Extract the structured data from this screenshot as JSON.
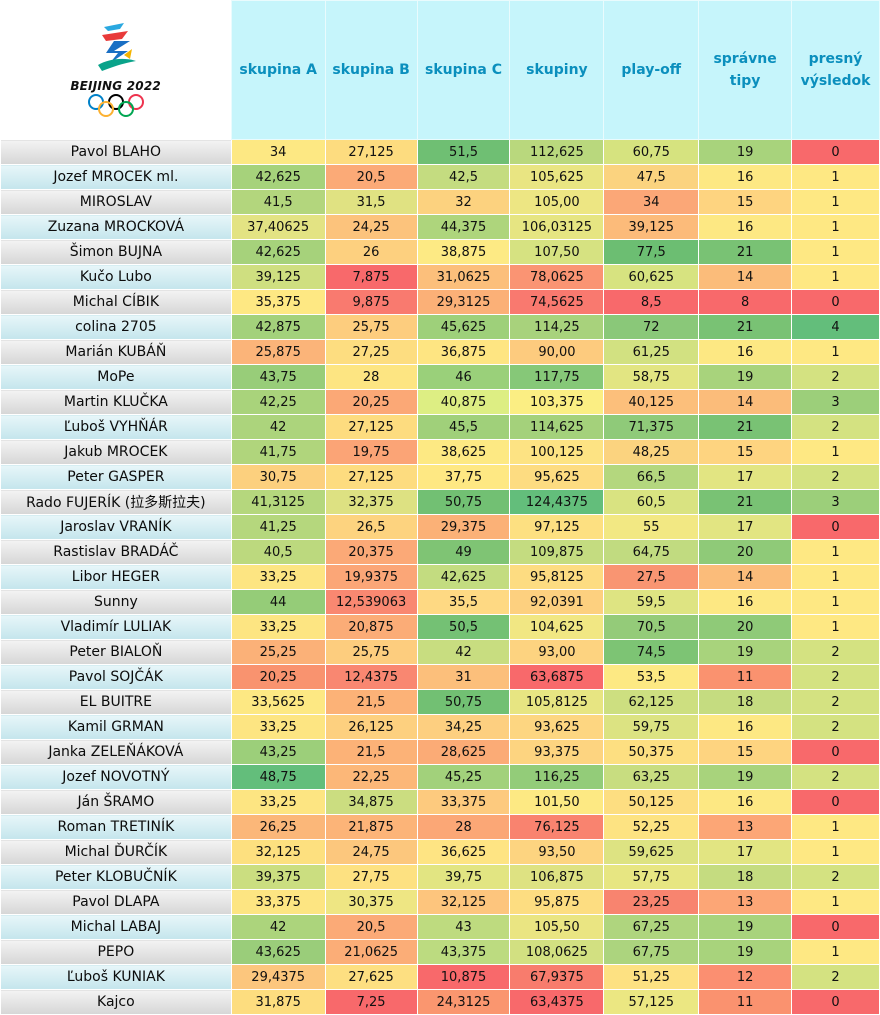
{
  "logo": {
    "text": "BEIJING 2022",
    "icon": "beijing-2022-olympic-emblem"
  },
  "colors": {
    "header_bg": "#c6f5fb",
    "header_text": "#0b8fbd"
  },
  "headers": [
    "skupina A",
    "skupina B",
    "skupina C",
    "skupiny",
    "play-off",
    "správne tipy",
    "presný výsledok"
  ],
  "rows": [
    {
      "name": "Pavol BLAHO",
      "values": [
        "34",
        "27,125",
        "51,5",
        "112,625",
        "60,75",
        "19",
        "0"
      ],
      "colors": [
        "#fde883",
        "#fddc7f",
        "#6fbf73",
        "#b9d87d",
        "#d6e37f",
        "#a8d37c",
        "#f8696b"
      ]
    },
    {
      "name": "Jozef MROCEK ml.",
      "values": [
        "42,625",
        "20,5",
        "42,5",
        "105,625",
        "47,5",
        "16",
        "1"
      ],
      "colors": [
        "#a6d27b",
        "#fbaa77",
        "#c4dc80",
        "#e9e582",
        "#fbd37f",
        "#fde883",
        "#fee883"
      ]
    },
    {
      "name": "MIROSLAV",
      "values": [
        "41,5",
        "31,5",
        "32",
        "105,00",
        "34",
        "15",
        "1"
      ],
      "colors": [
        "#b3d67d",
        "#e0e282",
        "#fcd27f",
        "#edE683",
        "#fba777",
        "#fed480",
        "#fee883"
      ]
    },
    {
      "name": "Zuzana MROCKOVÁ",
      "values": [
        "37,40625",
        "24,25",
        "44,375",
        "106,03125",
        "39,125",
        "16",
        "1"
      ],
      "colors": [
        "#e3e383",
        "#fcc37c",
        "#aed57c",
        "#e6e582",
        "#fcbb7a",
        "#fde883",
        "#fee883"
      ]
    },
    {
      "name": "Šimon BUJNA",
      "values": [
        "42,625",
        "26",
        "38,875",
        "107,50",
        "77,5",
        "21",
        "1"
      ],
      "colors": [
        "#a6d27b",
        "#fdd07f",
        "#fdea84",
        "#d6e281",
        "#6cbe72",
        "#79c274",
        "#fee883"
      ]
    },
    {
      "name": "Kučo Lubo",
      "values": [
        "39,125",
        "7,875",
        "31,0625",
        "78,0625",
        "60,625",
        "14",
        "1"
      ],
      "colors": [
        "#cfdf80",
        "#f8696b",
        "#fcbf7b",
        "#fa9473",
        "#d7e380",
        "#fbbc7a",
        "#fee883"
      ]
    },
    {
      "name": "Michal CÍBIK",
      "values": [
        "35,375",
        "9,875",
        "29,3125",
        "74,5625",
        "8,5",
        "8",
        "0"
      ],
      "colors": [
        "#fee883",
        "#f97a6f",
        "#fbb077",
        "#f9796f",
        "#f8696b",
        "#f8696b",
        "#f8696b"
      ]
    },
    {
      "name": "colina 2705",
      "values": [
        "42,875",
        "25,75",
        "45,625",
        "114,25",
        "72",
        "21",
        "4"
      ],
      "colors": [
        "#a3d17b",
        "#fdcd7e",
        "#9ed07a",
        "#a8d27c",
        "#8ac879",
        "#79c274",
        "#63be7b"
      ]
    },
    {
      "name": "Marián KUBÁŇ",
      "values": [
        "25,875",
        "27,25",
        "36,875",
        "90,00",
        "61,25",
        "16",
        "1"
      ],
      "colors": [
        "#fbb479",
        "#fddd80",
        "#fee582",
        "#fdcb7e",
        "#d2e181",
        "#fde883",
        "#fee883"
      ]
    },
    {
      "name": "MoPe",
      "values": [
        "43,75",
        "28",
        "46",
        "117,75",
        "58,75",
        "19",
        "2"
      ],
      "colors": [
        "#98cd79",
        "#fde582",
        "#9ad07a",
        "#86c878",
        "#e2e582",
        "#a8d37c",
        "#d4e281"
      ]
    },
    {
      "name": "Martin KLUČKA",
      "values": [
        "42,25",
        "20,25",
        "40,875",
        "103,375",
        "40,125",
        "14",
        "3"
      ],
      "colors": [
        "#a9d37b",
        "#fba876",
        "#ddee83",
        "#fbee83",
        "#fcbf7b",
        "#fbbc7a",
        "#9ccf7a"
      ]
    },
    {
      "name": "Ľuboš VYHŇÁR",
      "values": [
        "42",
        "27,125",
        "45,5",
        "114,625",
        "71,375",
        "21",
        "2"
      ],
      "colors": [
        "#acd47c",
        "#fddc7f",
        "#a0d07a",
        "#a4d17b",
        "#8fca79",
        "#79c274",
        "#d4e281"
      ]
    },
    {
      "name": "Jakub MROCEK",
      "values": [
        "41,75",
        "19,75",
        "38,625",
        "100,125",
        "48,25",
        "15",
        "1"
      ],
      "colors": [
        "#b0d57c",
        "#fba476",
        "#fde983",
        "#fde383",
        "#fbd37f",
        "#fed480",
        "#fee883"
      ]
    },
    {
      "name": "Peter GASPER",
      "values": [
        "30,75",
        "27,125",
        "37,75",
        "95,625",
        "66,5",
        "17",
        "2"
      ],
      "colors": [
        "#fcd07e",
        "#fddc7f",
        "#fee883",
        "#fddc81",
        "#b4d77e",
        "#e2e582",
        "#d4e281"
      ]
    },
    {
      "name": "Rado FUJERÍK (拉多斯拉夫)",
      "values": [
        "41,3125",
        "32,375",
        "50,75",
        "124,4375",
        "60,5",
        "21",
        "3"
      ],
      "colors": [
        "#b5d77d",
        "#dde182",
        "#72c073",
        "#63be7b",
        "#d9e381",
        "#79c274",
        "#9ccf7a"
      ]
    },
    {
      "name": "Jaroslav VRANÍK",
      "values": [
        "41,25",
        "26,5",
        "29,375",
        "97,125",
        "55",
        "17",
        "0"
      ],
      "colors": [
        "#b5d77d",
        "#fdd37f",
        "#fbb177",
        "#fde081",
        "#f2e883",
        "#e2e582",
        "#f8696b"
      ]
    },
    {
      "name": "Rastislav BRADÁČ",
      "values": [
        "40,5",
        "20,375",
        "49",
        "109,875",
        "64,75",
        "20",
        "1"
      ],
      "colors": [
        "#bcd97e",
        "#fba977",
        "#7fc474",
        "#c4dc80",
        "#c1db80",
        "#8fca78",
        "#fee883"
      ]
    },
    {
      "name": "Libor HEGER",
      "values": [
        "33,25",
        "19,9375",
        "42,625",
        "95,8125",
        "27,5",
        "14",
        "1"
      ],
      "colors": [
        "#fde582",
        "#fba677",
        "#c3dc80",
        "#fddc81",
        "#f99572",
        "#fbbc7a",
        "#fee883"
      ]
    },
    {
      "name": "Sunny",
      "values": [
        "44",
        "12,539063",
        "35,5",
        "92,0391",
        "59,5",
        "16",
        "1"
      ],
      "colors": [
        "#95cc78",
        "#f98871",
        "#fed983",
        "#fdd07f",
        "#dee482",
        "#fde883",
        "#fee883"
      ]
    },
    {
      "name": "Vladimír LULIAK",
      "values": [
        "33,25",
        "20,875",
        "50,5",
        "104,625",
        "70,5",
        "20",
        "1"
      ],
      "colors": [
        "#fde582",
        "#fbac77",
        "#74c174",
        "#f1e783",
        "#94cb79",
        "#8fca78",
        "#fee883"
      ]
    },
    {
      "name": "Peter BIALOŇ",
      "values": [
        "25,25",
        "25,75",
        "42",
        "93,00",
        "74,5",
        "19",
        "2"
      ],
      "colors": [
        "#fbb178",
        "#fdcd7e",
        "#c8dd80",
        "#fdd380",
        "#7dc474",
        "#a8d37c",
        "#d4e281"
      ]
    },
    {
      "name": "Pavol SOJČÁK",
      "values": [
        "20,25",
        "12,4375",
        "31",
        "63,6875",
        "53,5",
        "11",
        "2"
      ],
      "colors": [
        "#f9936f",
        "#f98771",
        "#fcbf7b",
        "#f8696b",
        "#fde983",
        "#fa926f",
        "#d4e281"
      ]
    },
    {
      "name": "EL BUITRE",
      "values": [
        "33,5625",
        "21,5",
        "50,75",
        "105,8125",
        "62,125",
        "18",
        "2"
      ],
      "colors": [
        "#fde883",
        "#fcb277",
        "#72c073",
        "#e7e582",
        "#cddf80",
        "#c5dc80",
        "#d4e281"
      ]
    },
    {
      "name": "Kamil GRMAN",
      "values": [
        "33,25",
        "26,125",
        "34,25",
        "93,625",
        "59,75",
        "16",
        "2"
      ],
      "colors": [
        "#fde582",
        "#fdd07f",
        "#fdcf80",
        "#fdd681",
        "#dce382",
        "#fde883",
        "#d4e281"
      ]
    },
    {
      "name": "Janka ZELEŇÁKOVÁ",
      "values": [
        "43,25",
        "21,5",
        "28,625",
        "93,375",
        "50,375",
        "15",
        "0"
      ],
      "colors": [
        "#9ccf7a",
        "#fcb277",
        "#fbab76",
        "#fdd480",
        "#fddf81",
        "#fed480",
        "#f8696b"
      ]
    },
    {
      "name": "Jozef NOVOTNÝ",
      "values": [
        "48,75",
        "22,25",
        "45,25",
        "116,25",
        "63,25",
        "19",
        "2"
      ],
      "colors": [
        "#63be7b",
        "#fcb778",
        "#a2d17b",
        "#93cc79",
        "#c8dd80",
        "#a8d37c",
        "#d4e281"
      ]
    },
    {
      "name": "Ján ŠRAMO",
      "values": [
        "33,25",
        "34,875",
        "33,375",
        "101,50",
        "50,125",
        "16",
        "0"
      ],
      "colors": [
        "#fde582",
        "#cbdd80",
        "#fdca7e",
        "#fde983",
        "#fdde81",
        "#fde883",
        "#f8696b"
      ]
    },
    {
      "name": "Roman TRETINÍK",
      "values": [
        "26,25",
        "21,875",
        "28",
        "76,125",
        "52,25",
        "13",
        "1"
      ],
      "colors": [
        "#fbb779",
        "#fcb478",
        "#fba776",
        "#f9836f",
        "#fde382",
        "#fca676",
        "#fee883"
      ]
    },
    {
      "name": "Michal ĎURČÍK",
      "values": [
        "32,125",
        "24,75",
        "36,625",
        "93,50",
        "59,625",
        "17",
        "1"
      ],
      "colors": [
        "#fde07f",
        "#fcc77d",
        "#fee483",
        "#fdd480",
        "#dde382",
        "#e2e582",
        "#fee883"
      ]
    },
    {
      "name": "Peter KLOBUČNÍK",
      "values": [
        "39,375",
        "27,75",
        "39,75",
        "106,875",
        "57,75",
        "18",
        "2"
      ],
      "colors": [
        "#cbde80",
        "#fde181",
        "#e2e582",
        "#dee282",
        "#e7e682",
        "#c5dc80",
        "#d4e281"
      ]
    },
    {
      "name": "Pavol DLAPA",
      "values": [
        "33,375",
        "30,375",
        "32,125",
        "95,875",
        "23,25",
        "13",
        "1"
      ],
      "colors": [
        "#fde582",
        "#eee683",
        "#fdc57d",
        "#fddd81",
        "#f8846f",
        "#fca676",
        "#fee883"
      ]
    },
    {
      "name": "Michal LABAJ",
      "values": [
        "42",
        "20,5",
        "43",
        "105,50",
        "67,25",
        "19",
        "0"
      ],
      "colors": [
        "#acd47c",
        "#fbaa77",
        "#bedb7f",
        "#eae582",
        "#afd57e",
        "#a8d37c",
        "#f8696b"
      ]
    },
    {
      "name": "PEPO",
      "values": [
        "43,625",
        "21,0625",
        "43,375",
        "108,0625",
        "67,75",
        "19",
        "1"
      ],
      "colors": [
        "#9acd7a",
        "#fbad77",
        "#bcdb80",
        "#d2e081",
        "#acd47e",
        "#a8d37c",
        "#fee883"
      ]
    },
    {
      "name": "Ľuboš KUNIAK",
      "values": [
        "29,4375",
        "27,625",
        "10,875",
        "67,9375",
        "51,25",
        "12",
        "2"
      ],
      "colors": [
        "#fcc67d",
        "#fddf81",
        "#f8696b",
        "#f87c6d",
        "#fde182",
        "#fb8f71",
        "#d4e281"
      ]
    },
    {
      "name": "Kajco",
      "values": [
        "31,875",
        "7,25",
        "24,3125",
        "63,4375",
        "57,125",
        "11",
        "0"
      ],
      "colors": [
        "#fddd7f",
        "#f8696b",
        "#fa966f",
        "#f8696b",
        "#ebe782",
        "#fa926f",
        "#f8696b"
      ]
    }
  ]
}
